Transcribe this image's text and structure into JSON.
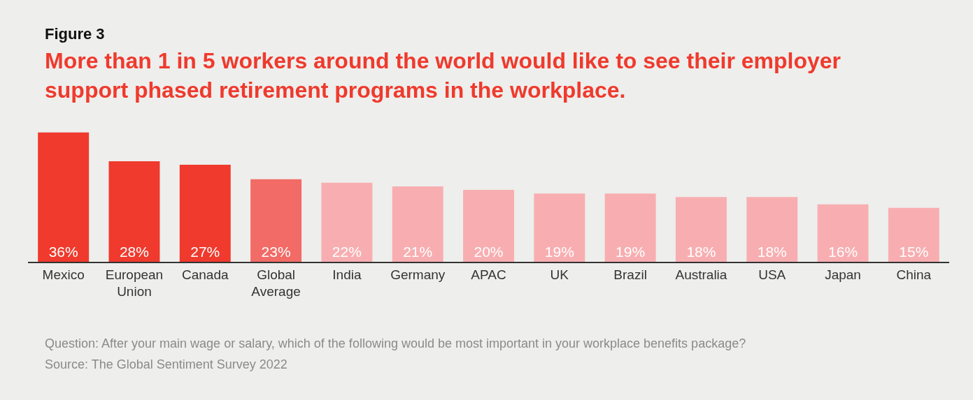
{
  "chart_data": {
    "type": "bar",
    "title": "Figure 3",
    "subtitle": "More than 1 in 5 workers around the world would like to see their employer support phased retirement programs in the workplace.",
    "categories": [
      "Mexico",
      "European Union",
      "Canada",
      "Global Average",
      "India",
      "Germany",
      "APAC",
      "UK",
      "Brazil",
      "Australia",
      "USA",
      "Japan",
      "China"
    ],
    "values": [
      36,
      28,
      27,
      23,
      22,
      21,
      20,
      19,
      19,
      18,
      18,
      16,
      15
    ],
    "value_labels": [
      "36%",
      "28%",
      "27%",
      "23%",
      "22%",
      "21%",
      "20%",
      "19%",
      "19%",
      "18%",
      "18%",
      "16%",
      "15%"
    ],
    "colors": [
      "#ef3a2d",
      "#ef3a2d",
      "#ef3a2d",
      "#f26b66",
      "#f8aeb1",
      "#f8aeb1",
      "#f8aeb1",
      "#f8aeb1",
      "#f8aeb1",
      "#f8aeb1",
      "#f8aeb1",
      "#f8aeb1",
      "#f8aeb1"
    ],
    "annotations": [
      "Question: After your main wage or salary, which of the following would be most important in your workplace benefits package?",
      "Source: The Global Sentiment Survey 2022"
    ],
    "grid": false
  }
}
